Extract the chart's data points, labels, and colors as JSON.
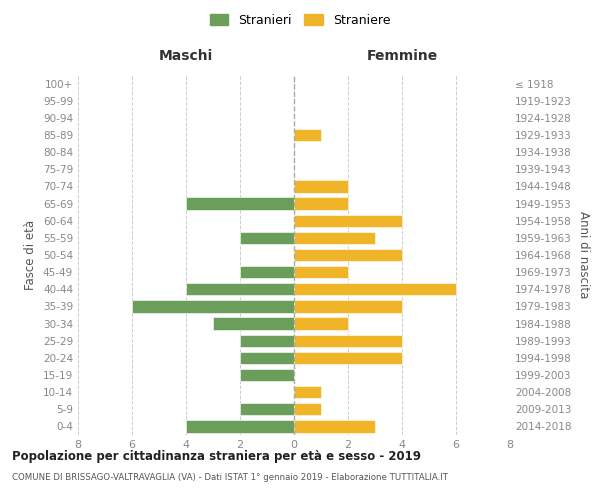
{
  "age_groups": [
    "0-4",
    "5-9",
    "10-14",
    "15-19",
    "20-24",
    "25-29",
    "30-34",
    "35-39",
    "40-44",
    "45-49",
    "50-54",
    "55-59",
    "60-64",
    "65-69",
    "70-74",
    "75-79",
    "80-84",
    "85-89",
    "90-94",
    "95-99",
    "100+"
  ],
  "birth_years": [
    "2014-2018",
    "2009-2013",
    "2004-2008",
    "1999-2003",
    "1994-1998",
    "1989-1993",
    "1984-1988",
    "1979-1983",
    "1974-1978",
    "1969-1973",
    "1964-1968",
    "1959-1963",
    "1954-1958",
    "1949-1953",
    "1944-1948",
    "1939-1943",
    "1934-1938",
    "1929-1933",
    "1924-1928",
    "1919-1923",
    "≤ 1918"
  ],
  "maschi": [
    4,
    2,
    0,
    2,
    2,
    2,
    3,
    6,
    4,
    2,
    0,
    2,
    0,
    4,
    0,
    0,
    0,
    0,
    0,
    0,
    0
  ],
  "femmine": [
    3,
    1,
    1,
    0,
    4,
    4,
    2,
    4,
    6,
    2,
    4,
    3,
    4,
    2,
    2,
    0,
    0,
    1,
    0,
    0,
    0
  ],
  "color_maschi": "#6a9e5a",
  "color_femmine": "#f0b429",
  "title": "Popolazione per cittadinanza straniera per età e sesso - 2019",
  "subtitle": "COMUNE DI BRISSAGO-VALTRAVAGLIA (VA) - Dati ISTAT 1° gennaio 2019 - Elaborazione TUTTITALIA.IT",
  "xlabel_left": "Maschi",
  "xlabel_right": "Femmine",
  "ylabel_left": "Fasce di età",
  "ylabel_right": "Anni di nascita",
  "xlim": 8,
  "legend_stranieri": "Stranieri",
  "legend_straniere": "Straniere",
  "grid_color": "#cccccc",
  "bg_color": "#ffffff",
  "bar_edge_color": "#ffffff",
  "tick_color": "#888888"
}
